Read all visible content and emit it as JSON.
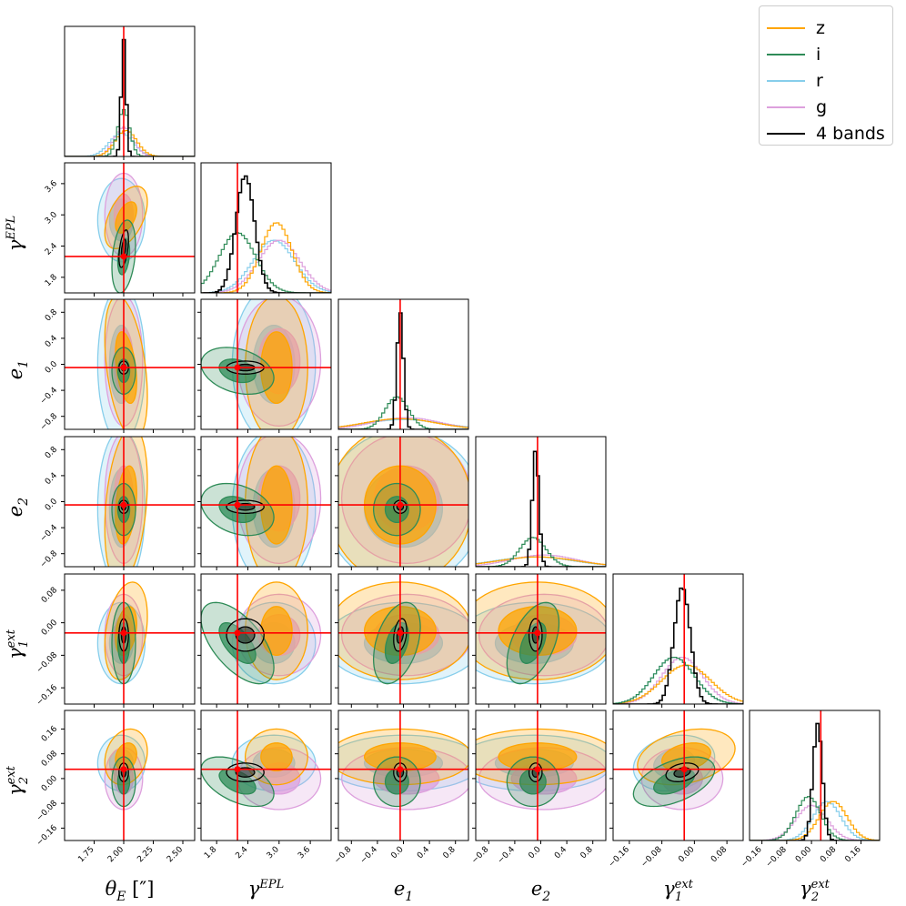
{
  "chart_data": {
    "type": "corner",
    "parameters": [
      {
        "key": "thetaE",
        "label_main": "θ",
        "label_sub": "E",
        "label_suffix": " [″]",
        "range": [
          1.5,
          2.6
        ],
        "ticks": [
          1.75,
          2.0,
          2.25,
          2.5
        ],
        "tick_labels": [
          "1.75",
          "2.00",
          "2.25",
          "2.50"
        ],
        "truth": 2.0
      },
      {
        "key": "gammaEPL",
        "label_main": "γ",
        "label_sup": "EPL",
        "range": [
          1.5,
          4.0
        ],
        "ticks": [
          1.8,
          2.4,
          3.0,
          3.6
        ],
        "tick_labels": [
          "1.8",
          "2.4",
          "3.0",
          "3.6"
        ],
        "truth": 2.2
      },
      {
        "key": "e1",
        "label_main": "e",
        "label_sub": "1",
        "range": [
          -1.0,
          1.0
        ],
        "ticks": [
          -0.8,
          -0.4,
          0.0,
          0.4,
          0.8
        ],
        "tick_labels": [
          "−0.8",
          "−0.4",
          "0.0",
          "0.4",
          "0.8"
        ],
        "truth": -0.05
      },
      {
        "key": "e2",
        "label_main": "e",
        "label_sub": "2",
        "range": [
          -1.0,
          1.0
        ],
        "ticks": [
          -0.8,
          -0.4,
          0.0,
          0.4,
          0.8
        ],
        "tick_labels": [
          "−0.8",
          "−0.4",
          "0.0",
          "0.4",
          "0.8"
        ],
        "truth": -0.05
      },
      {
        "key": "gamma1ext",
        "label_main": "γ",
        "label_sub": "1",
        "label_sup": "ext",
        "range": [
          -0.2,
          0.12
        ],
        "ticks": [
          -0.16,
          -0.08,
          0.0,
          0.08
        ],
        "tick_labels": [
          "−0.16",
          "−0.08",
          "0.00",
          "0.08"
        ],
        "truth": -0.025
      },
      {
        "key": "gamma2ext",
        "label_main": "γ",
        "label_sub": "2",
        "label_sup": "ext",
        "range": [
          -0.2,
          0.22
        ],
        "ticks": [
          -0.16,
          -0.08,
          0.0,
          0.08,
          0.16
        ],
        "tick_labels": [
          "−0.16",
          "−0.08",
          "0.00",
          "0.08",
          "0.16"
        ],
        "truth": 0.03
      }
    ],
    "series": [
      {
        "name": "z",
        "color": "#FFA500",
        "mean": [
          2.02,
          2.95,
          -0.05,
          -0.05,
          -0.02,
          0.07
        ],
        "sd": [
          0.09,
          0.3,
          0.55,
          0.6,
          0.06,
          0.045
        ],
        "corr": [
          [
            1,
            0.5,
            -0.4,
            0.3,
            0.3,
            0.2
          ],
          [
            0.5,
            1,
            0,
            0,
            0,
            0
          ],
          [
            -0.4,
            0,
            1,
            0,
            0,
            0
          ],
          [
            0.3,
            0,
            0,
            1,
            0,
            0
          ],
          [
            0.3,
            0,
            0,
            0,
            1,
            0.3
          ],
          [
            0.2,
            0,
            0,
            0,
            0.3,
            1
          ]
        ]
      },
      {
        "name": "i",
        "color": "#2E8B57",
        "mean": [
          2.0,
          2.2,
          -0.1,
          -0.12,
          -0.05,
          -0.01
        ],
        "sd": [
          0.05,
          0.35,
          0.18,
          0.2,
          0.05,
          0.04
        ],
        "corr": [
          [
            1,
            0.3,
            0,
            0,
            0,
            0
          ],
          [
            0.3,
            1,
            -0.3,
            -0.3,
            -0.6,
            -0.5
          ],
          [
            0,
            -0.3,
            1,
            0,
            0.4,
            0
          ],
          [
            0,
            -0.3,
            0,
            1,
            0.5,
            0
          ],
          [
            0,
            -0.6,
            0.4,
            0.5,
            1,
            0.5
          ],
          [
            0,
            -0.5,
            0,
            0,
            0.5,
            1
          ]
        ]
      },
      {
        "name": "r",
        "color": "#87CEEB",
        "mean": [
          1.98,
          2.9,
          0.0,
          -0.1,
          -0.05,
          0.05
        ],
        "sd": [
          0.1,
          0.4,
          0.6,
          0.6,
          0.05,
          0.045
        ],
        "corr": [
          [
            1,
            0,
            0,
            0,
            0,
            0
          ],
          [
            0,
            1,
            0,
            0,
            0,
            0
          ],
          [
            0,
            0,
            1,
            0,
            0,
            0
          ],
          [
            0,
            0,
            0,
            1,
            0,
            0
          ],
          [
            0,
            0,
            0,
            0,
            1,
            0.2
          ],
          [
            0,
            0,
            0,
            0,
            0.2,
            1
          ]
        ]
      },
      {
        "name": "g",
        "color": "#DDA0DD",
        "mean": [
          2.0,
          3.0,
          0.05,
          0.05,
          -0.03,
          0.0
        ],
        "sd": [
          0.08,
          0.4,
          0.5,
          0.5,
          0.05,
          0.05
        ],
        "corr": [
          [
            1,
            0,
            0,
            0,
            0,
            0
          ],
          [
            0,
            1,
            0,
            0,
            0,
            0
          ],
          [
            0,
            0,
            1,
            0,
            0,
            0
          ],
          [
            0,
            0,
            0,
            1,
            0,
            0
          ],
          [
            0,
            0,
            0,
            0,
            1,
            0
          ],
          [
            0,
            0,
            0,
            0,
            0,
            1
          ]
        ]
      },
      {
        "name": "4 bands",
        "color": "#000000",
        "mean": [
          2.0,
          2.35,
          -0.05,
          -0.08,
          -0.03,
          0.02
        ],
        "sd": [
          0.02,
          0.18,
          0.05,
          0.05,
          0.02,
          0.015
        ],
        "corr": [
          [
            1,
            0.5,
            0,
            0,
            0,
            0
          ],
          [
            0.5,
            1,
            0,
            0,
            0,
            0
          ],
          [
            0,
            0,
            1,
            0,
            0.3,
            0
          ],
          [
            0,
            0,
            0,
            1,
            0,
            0
          ],
          [
            0,
            0,
            0.3,
            0,
            1,
            0.3
          ],
          [
            0,
            0,
            0,
            0,
            0.3,
            1
          ]
        ]
      }
    ],
    "contour_levels_sigma": [
      1,
      2
    ],
    "truth_color": "#FF0000",
    "legend_position": "top-right"
  }
}
